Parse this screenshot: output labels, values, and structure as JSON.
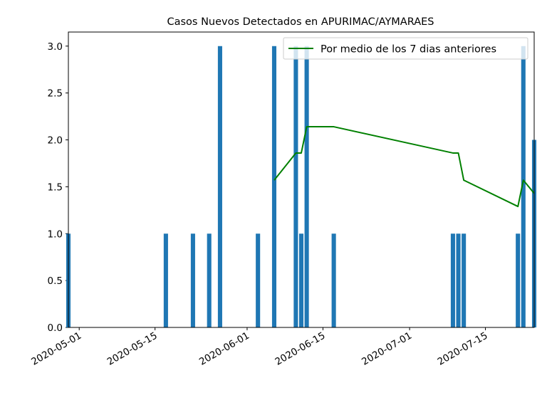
{
  "chart_data": {
    "type": "bar",
    "title": "Casos Nuevos Detectados en APURIMAC/AYMARAES",
    "xlabel": "",
    "ylabel": "",
    "ylim": [
      0,
      3.15
    ],
    "xlim": [
      "2020-04-29",
      "2020-07-24"
    ],
    "grid": false,
    "legend_position": "top-right",
    "x_ticks": [
      "2020-05-01",
      "2020-05-15",
      "2020-06-01",
      "2020-06-15",
      "2020-07-01",
      "2020-07-15"
    ],
    "y_ticks": [
      "0.0",
      "0.5",
      "1.0",
      "1.5",
      "2.0",
      "2.5",
      "3.0"
    ],
    "bar_color": "#1f77b4",
    "line_color": "#008000",
    "bars": [
      {
        "date": "2020-04-29",
        "value": 1
      },
      {
        "date": "2020-05-17",
        "value": 1
      },
      {
        "date": "2020-05-22",
        "value": 1
      },
      {
        "date": "2020-05-25",
        "value": 1
      },
      {
        "date": "2020-05-27",
        "value": 3
      },
      {
        "date": "2020-06-03",
        "value": 1
      },
      {
        "date": "2020-06-06",
        "value": 3
      },
      {
        "date": "2020-06-10",
        "value": 3
      },
      {
        "date": "2020-06-11",
        "value": 1
      },
      {
        "date": "2020-06-12",
        "value": 3
      },
      {
        "date": "2020-06-17",
        "value": 1
      },
      {
        "date": "2020-07-09",
        "value": 1
      },
      {
        "date": "2020-07-10",
        "value": 1
      },
      {
        "date": "2020-07-11",
        "value": 1
      },
      {
        "date": "2020-07-21",
        "value": 1
      },
      {
        "date": "2020-07-22",
        "value": 3
      },
      {
        "date": "2020-07-24",
        "value": 2
      }
    ],
    "series": [
      {
        "name": "Por medio de los 7 dias anteriores",
        "points": [
          {
            "date": "2020-06-06",
            "value": 1.57
          },
          {
            "date": "2020-06-10",
            "value": 1.86
          },
          {
            "date": "2020-06-11",
            "value": 1.86
          },
          {
            "date": "2020-06-12",
            "value": 2.14
          },
          {
            "date": "2020-06-17",
            "value": 2.14
          },
          {
            "date": "2020-07-09",
            "value": 1.86
          },
          {
            "date": "2020-07-10",
            "value": 1.86
          },
          {
            "date": "2020-07-11",
            "value": 1.57
          },
          {
            "date": "2020-07-21",
            "value": 1.29
          },
          {
            "date": "2020-07-22",
            "value": 1.57
          },
          {
            "date": "2020-07-24",
            "value": 1.43
          }
        ]
      }
    ]
  }
}
